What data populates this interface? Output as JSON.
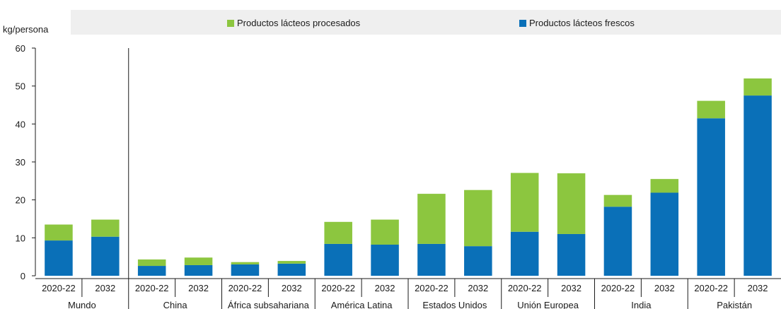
{
  "legend": [
    {
      "label": "Productos lácteos procesados",
      "color": "#8cc63f"
    },
    {
      "label": "Productos lácteos frescos",
      "color": "#0a70b8"
    }
  ],
  "chart_data": {
    "type": "bar",
    "stacked": true,
    "ylabel": "kg/persona",
    "ylim": [
      0,
      60
    ],
    "yticks": [
      0,
      10,
      20,
      30,
      40,
      50,
      60
    ],
    "groups": [
      {
        "name": "Mundo",
        "periods": [
          "2020-22",
          "2032"
        ]
      },
      {
        "name": "China",
        "periods": [
          "2020-22",
          "2032"
        ]
      },
      {
        "name": "África subsahariana",
        "periods": [
          "2020-22",
          "2032"
        ]
      },
      {
        "name": "América Latina",
        "periods": [
          "2020-22",
          "2032"
        ]
      },
      {
        "name": "Estados Unidos",
        "periods": [
          "2020-22",
          "2032"
        ]
      },
      {
        "name": "Unión Europea",
        "periods": [
          "2020-22",
          "2032"
        ]
      },
      {
        "name": "India",
        "periods": [
          "2020-22",
          "2032"
        ]
      },
      {
        "name": "Pakistán",
        "periods": [
          "2020-22",
          "2032"
        ]
      }
    ],
    "series": [
      {
        "name": "Productos lácteos frescos",
        "color": "#0a70b8",
        "values": [
          9.3,
          10.3,
          2.6,
          2.8,
          3.0,
          3.2,
          8.4,
          8.2,
          8.4,
          7.8,
          11.6,
          11.0,
          18.2,
          21.9,
          41.5,
          47.5
        ]
      },
      {
        "name": "Productos lácteos procesados",
        "color": "#8cc63f",
        "values": [
          4.2,
          4.5,
          1.7,
          2.0,
          0.6,
          0.7,
          5.8,
          6.6,
          13.2,
          14.8,
          15.5,
          16.0,
          3.1,
          3.6,
          4.6,
          4.5
        ]
      }
    ]
  }
}
